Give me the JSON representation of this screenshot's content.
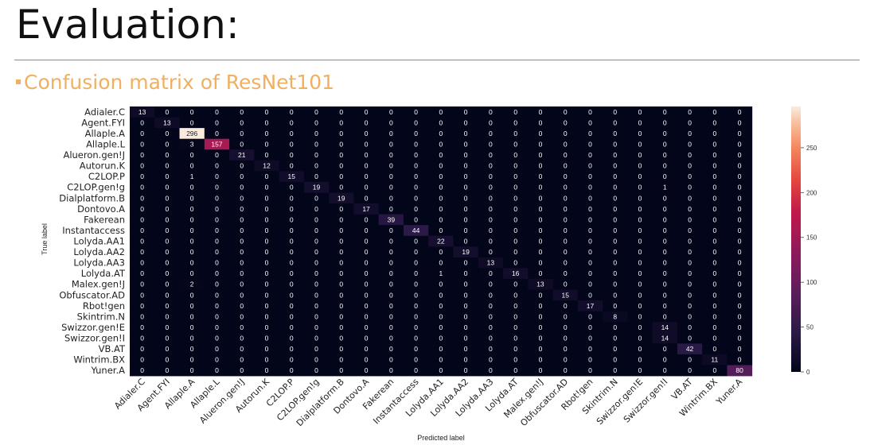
{
  "slide": {
    "title": "Evaluation:",
    "subtitle": "Confusion matrix of ResNet101",
    "accent_color": "#f0b060"
  },
  "chart_data": {
    "type": "heatmap",
    "title": "Confusion matrix of ResNet101",
    "xlabel": "Predicted label",
    "ylabel": "True label",
    "labels": [
      "Adialer.C",
      "Agent.FYI",
      "Allaple.A",
      "Allaple.L",
      "Alueron.gen!J",
      "Autorun.K",
      "C2LOP.P",
      "C2LOP.gen!g",
      "Dialplatform.B",
      "Dontovo.A",
      "Fakerean",
      "Instantaccess",
      "Lolyda.AA1",
      "Lolyda.AA2",
      "Lolyda.AA3",
      "Lolyda.AT",
      "Malex.gen!J",
      "Obfuscator.AD",
      "Rbot!gen",
      "Skintrim.N",
      "Swizzor.gen!E",
      "Swizzor.gen!I",
      "VB.AT",
      "Wintrim.BX",
      "Yuner.A"
    ],
    "matrix": [
      [
        13,
        0,
        0,
        0,
        0,
        0,
        0,
        0,
        0,
        0,
        0,
        0,
        0,
        0,
        0,
        0,
        0,
        0,
        0,
        0,
        0,
        0,
        0,
        0,
        0
      ],
      [
        0,
        13,
        0,
        0,
        0,
        0,
        0,
        0,
        0,
        0,
        0,
        0,
        0,
        0,
        0,
        0,
        0,
        0,
        0,
        0,
        0,
        0,
        0,
        0,
        0
      ],
      [
        0,
        0,
        296,
        0,
        0,
        0,
        0,
        0,
        0,
        0,
        0,
        0,
        0,
        0,
        0,
        0,
        0,
        0,
        0,
        0,
        0,
        0,
        0,
        0,
        0
      ],
      [
        0,
        0,
        3,
        157,
        0,
        0,
        0,
        0,
        0,
        0,
        0,
        0,
        0,
        0,
        0,
        0,
        0,
        0,
        0,
        0,
        0,
        0,
        0,
        0,
        0
      ],
      [
        0,
        0,
        0,
        0,
        21,
        0,
        0,
        0,
        0,
        0,
        0,
        0,
        0,
        0,
        0,
        0,
        0,
        0,
        0,
        0,
        0,
        0,
        0,
        0,
        0
      ],
      [
        0,
        0,
        0,
        0,
        0,
        12,
        0,
        0,
        0,
        0,
        0,
        0,
        0,
        0,
        0,
        0,
        0,
        0,
        0,
        0,
        0,
        0,
        0,
        0,
        0
      ],
      [
        0,
        0,
        1,
        0,
        0,
        0,
        15,
        0,
        0,
        0,
        0,
        0,
        0,
        0,
        0,
        0,
        0,
        0,
        0,
        0,
        0,
        0,
        0,
        0,
        0
      ],
      [
        0,
        0,
        0,
        0,
        0,
        0,
        0,
        19,
        0,
        0,
        0,
        0,
        0,
        0,
        0,
        0,
        0,
        0,
        0,
        0,
        0,
        1,
        0,
        0,
        0
      ],
      [
        0,
        0,
        0,
        0,
        0,
        0,
        0,
        0,
        19,
        0,
        0,
        0,
        0,
        0,
        0,
        0,
        0,
        0,
        0,
        0,
        0,
        0,
        0,
        0,
        0
      ],
      [
        0,
        0,
        0,
        0,
        0,
        0,
        0,
        0,
        0,
        17,
        0,
        0,
        0,
        0,
        0,
        0,
        0,
        0,
        0,
        0,
        0,
        0,
        0,
        0,
        0
      ],
      [
        0,
        0,
        0,
        0,
        0,
        0,
        0,
        0,
        0,
        0,
        39,
        0,
        0,
        0,
        0,
        0,
        0,
        0,
        0,
        0,
        0,
        0,
        0,
        0,
        0
      ],
      [
        0,
        0,
        0,
        0,
        0,
        0,
        0,
        0,
        0,
        0,
        0,
        44,
        0,
        0,
        0,
        0,
        0,
        0,
        0,
        0,
        0,
        0,
        0,
        0,
        0
      ],
      [
        0,
        0,
        0,
        0,
        0,
        0,
        0,
        0,
        0,
        0,
        0,
        0,
        22,
        0,
        0,
        0,
        0,
        0,
        0,
        0,
        0,
        0,
        0,
        0,
        0
      ],
      [
        0,
        0,
        0,
        0,
        0,
        0,
        0,
        0,
        0,
        0,
        0,
        0,
        0,
        19,
        0,
        0,
        0,
        0,
        0,
        0,
        0,
        0,
        0,
        0,
        0
      ],
      [
        0,
        0,
        0,
        0,
        0,
        0,
        0,
        0,
        0,
        0,
        0,
        0,
        0,
        0,
        13,
        0,
        0,
        0,
        0,
        0,
        0,
        0,
        0,
        0,
        0
      ],
      [
        0,
        0,
        0,
        0,
        0,
        0,
        0,
        0,
        0,
        0,
        0,
        0,
        1,
        0,
        0,
        16,
        0,
        0,
        0,
        0,
        0,
        0,
        0,
        0,
        0
      ],
      [
        0,
        0,
        2,
        0,
        0,
        0,
        0,
        0,
        0,
        0,
        0,
        0,
        0,
        0,
        0,
        0,
        13,
        0,
        0,
        0,
        0,
        0,
        0,
        0,
        0
      ],
      [
        0,
        0,
        0,
        0,
        0,
        0,
        0,
        0,
        0,
        0,
        0,
        0,
        0,
        0,
        0,
        0,
        0,
        15,
        0,
        0,
        0,
        0,
        0,
        0,
        0
      ],
      [
        0,
        0,
        0,
        0,
        0,
        0,
        0,
        0,
        0,
        0,
        0,
        0,
        0,
        0,
        0,
        0,
        0,
        0,
        17,
        0,
        0,
        0,
        0,
        0,
        0
      ],
      [
        0,
        0,
        0,
        0,
        0,
        0,
        0,
        0,
        0,
        0,
        0,
        0,
        0,
        0,
        0,
        0,
        0,
        0,
        0,
        8,
        0,
        0,
        0,
        0,
        0
      ],
      [
        0,
        0,
        0,
        0,
        0,
        0,
        0,
        0,
        0,
        0,
        0,
        0,
        0,
        0,
        0,
        0,
        0,
        0,
        0,
        0,
        0,
        14,
        0,
        0,
        0
      ],
      [
        0,
        0,
        0,
        0,
        0,
        0,
        0,
        0,
        0,
        0,
        0,
        0,
        0,
        0,
        0,
        0,
        0,
        0,
        0,
        0,
        0,
        14,
        0,
        0,
        0
      ],
      [
        0,
        0,
        0,
        0,
        0,
        0,
        0,
        0,
        0,
        0,
        0,
        0,
        0,
        0,
        0,
        0,
        0,
        0,
        0,
        0,
        0,
        0,
        42,
        0,
        0
      ],
      [
        0,
        0,
        0,
        0,
        0,
        0,
        0,
        0,
        0,
        0,
        0,
        0,
        0,
        0,
        0,
        0,
        0,
        0,
        0,
        0,
        0,
        0,
        0,
        11,
        0
      ],
      [
        0,
        0,
        0,
        0,
        0,
        0,
        0,
        0,
        0,
        0,
        0,
        0,
        0,
        0,
        0,
        0,
        0,
        0,
        0,
        0,
        0,
        0,
        0,
        0,
        80
      ]
    ],
    "colorbar": {
      "min": 0,
      "max": 296,
      "ticks": [
        0,
        50,
        100,
        150,
        200,
        250
      ]
    },
    "colormap": "rocket"
  }
}
